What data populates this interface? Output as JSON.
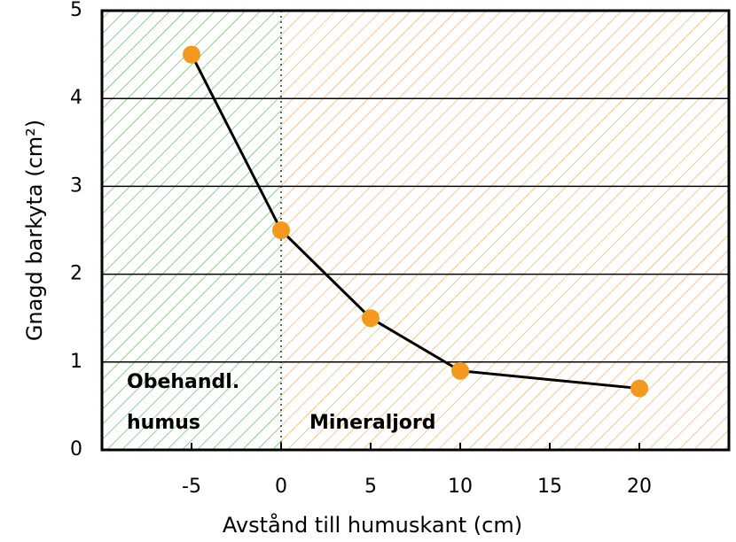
{
  "chart_data": {
    "type": "line",
    "xlabel": "Avstånd till humuskant (cm)",
    "ylabel": "Gnagd barkyta (cm²)",
    "x": [
      -5,
      0,
      5,
      10,
      20
    ],
    "series": [
      {
        "color": "#f39a1e",
        "values": [
          4.5,
          2.5,
          1.5,
          0.9,
          0.7
        ]
      }
    ],
    "xlim": [
      -10,
      25
    ],
    "xticks": [
      -5,
      0,
      5,
      10,
      15,
      20
    ],
    "ylim": [
      0,
      5
    ],
    "yticks": [
      0,
      1,
      2,
      3,
      4,
      5
    ],
    "grid": true,
    "regions": [
      {
        "labels": [
          "Obehandl.",
          "humus"
        ],
        "from": -10,
        "to": 0,
        "color": "#6cbf6c"
      },
      {
        "labels": [
          "Mineraljord"
        ],
        "from": 0,
        "to": 25,
        "color": "#f2b56b"
      }
    ]
  }
}
